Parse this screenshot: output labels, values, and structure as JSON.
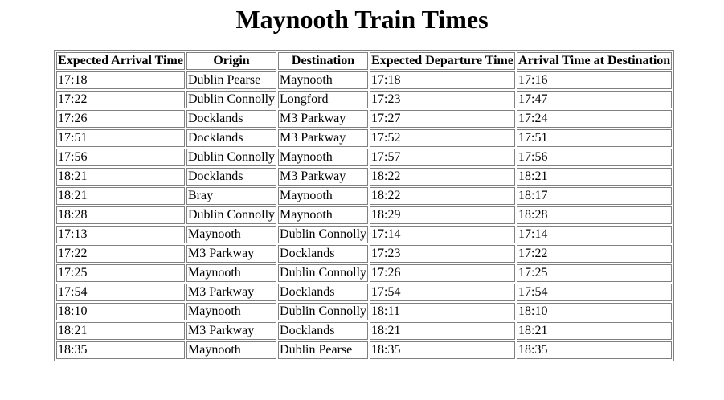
{
  "page": {
    "title": "Maynooth Train Times"
  },
  "table": {
    "headers": [
      "Expected Arrival Time",
      "Origin",
      "Destination",
      "Expected Departure Time",
      "Arrival Time at Destination"
    ],
    "rows": [
      [
        "17:18",
        "Dublin Pearse",
        "Maynooth",
        "17:18",
        "17:16"
      ],
      [
        "17:22",
        "Dublin Connolly",
        "Longford",
        "17:23",
        "17:47"
      ],
      [
        "17:26",
        "Docklands",
        "M3 Parkway",
        "17:27",
        "17:24"
      ],
      [
        "17:51",
        "Docklands",
        "M3 Parkway",
        "17:52",
        "17:51"
      ],
      [
        "17:56",
        "Dublin Connolly",
        "Maynooth",
        "17:57",
        "17:56"
      ],
      [
        "18:21",
        "Docklands",
        "M3 Parkway",
        "18:22",
        "18:21"
      ],
      [
        "18:21",
        "Bray",
        "Maynooth",
        "18:22",
        "18:17"
      ],
      [
        "18:28",
        "Dublin Connolly",
        "Maynooth",
        "18:29",
        "18:28"
      ],
      [
        "17:13",
        "Maynooth",
        "Dublin Connolly",
        "17:14",
        "17:14"
      ],
      [
        "17:22",
        "M3 Parkway",
        "Docklands",
        "17:23",
        "17:22"
      ],
      [
        "17:25",
        "Maynooth",
        "Dublin Connolly",
        "17:26",
        "17:25"
      ],
      [
        "17:54",
        "M3 Parkway",
        "Docklands",
        "17:54",
        "17:54"
      ],
      [
        "18:10",
        "Maynooth",
        "Dublin Connolly",
        "18:11",
        "18:10"
      ],
      [
        "18:21",
        "M3 Parkway",
        "Docklands",
        "18:21",
        "18:21"
      ],
      [
        "18:35",
        "Maynooth",
        "Dublin Pearse",
        "18:35",
        "18:35"
      ]
    ]
  }
}
